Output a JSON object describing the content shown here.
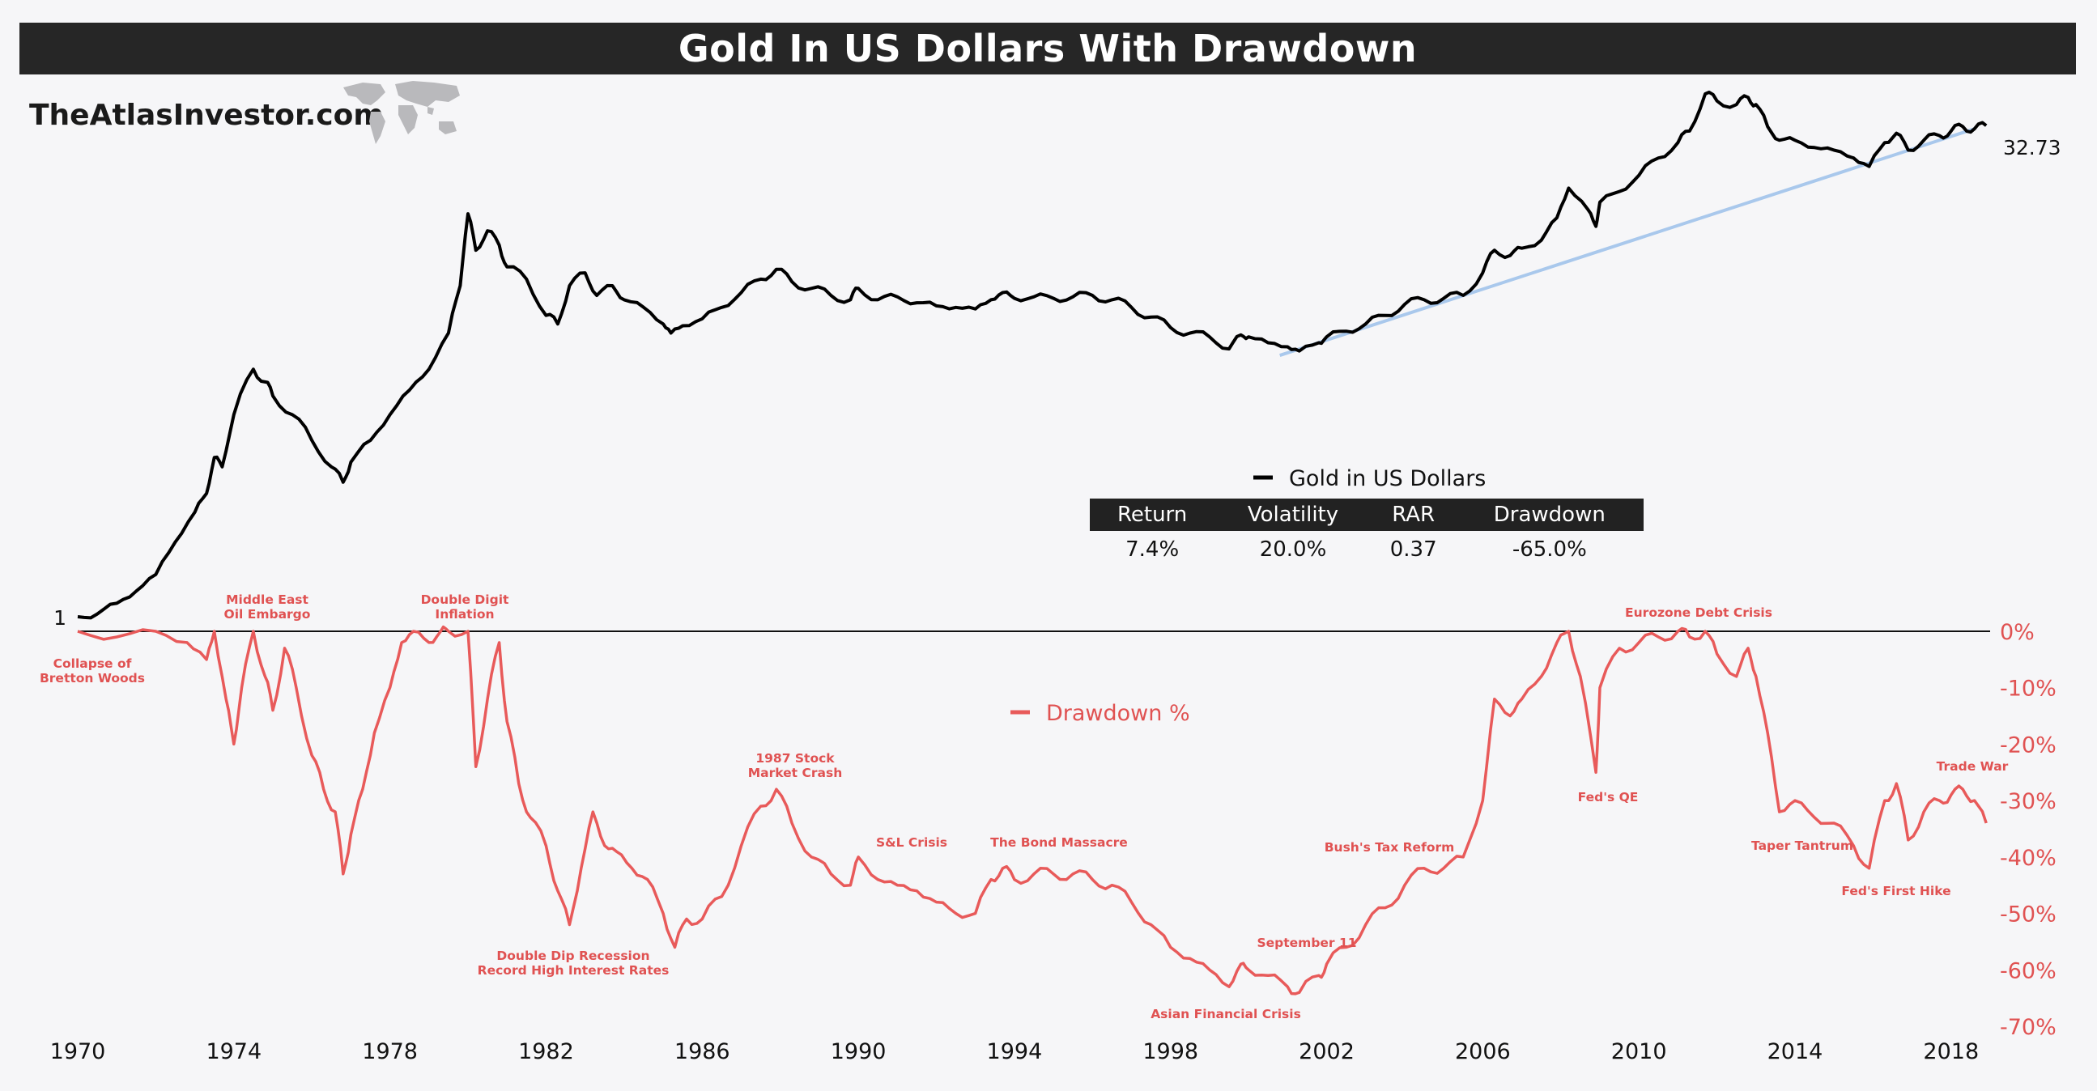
{
  "title": "Gold In US Dollars With Drawdown",
  "brand": "TheAtlasInvestor.com",
  "legend": {
    "gold": "Gold in US Dollars",
    "drawdown": "Drawdown %"
  },
  "stats": {
    "headers": [
      "Return",
      "Volatility",
      "RAR",
      "Drawdown"
    ],
    "values": [
      "7.4%",
      "20.0%",
      "0.37",
      "-65.0%"
    ]
  },
  "colors": {
    "gold": "#000000",
    "drawdown": "#e85a5a",
    "trend": "#a9c8ec",
    "header": "#262626"
  },
  "chart_data": {
    "type": "line",
    "title": "Gold In US Dollars With Drawdown",
    "x_ticks": [
      "1970",
      "1974",
      "1978",
      "1982",
      "1986",
      "1990",
      "1994",
      "1998",
      "2002",
      "2006",
      "2010",
      "2014",
      "2018"
    ],
    "gold": {
      "name": "Gold in US Dollars",
      "scale": "log",
      "start_label": "1",
      "end_label": "32.73",
      "points": [
        [
          1970.0,
          1.0
        ],
        [
          1970.5,
          1.02
        ],
        [
          1971.0,
          1.1
        ],
        [
          1971.5,
          1.2
        ],
        [
          1972.0,
          1.35
        ],
        [
          1972.5,
          1.7
        ],
        [
          1973.0,
          2.1
        ],
        [
          1973.3,
          2.4
        ],
        [
          1973.5,
          3.1
        ],
        [
          1973.7,
          2.9
        ],
        [
          1974.0,
          4.2
        ],
        [
          1974.5,
          5.8
        ],
        [
          1974.8,
          5.3
        ],
        [
          1975.0,
          4.8
        ],
        [
          1975.5,
          4.2
        ],
        [
          1976.0,
          3.5
        ],
        [
          1976.5,
          2.9
        ],
        [
          1976.8,
          2.6
        ],
        [
          1977.0,
          3.0
        ],
        [
          1977.5,
          3.5
        ],
        [
          1978.0,
          4.2
        ],
        [
          1978.5,
          5.0
        ],
        [
          1979.0,
          5.8
        ],
        [
          1979.5,
          7.5
        ],
        [
          1979.8,
          10.5
        ],
        [
          1980.0,
          17.5
        ],
        [
          1980.2,
          13.5
        ],
        [
          1980.5,
          15.5
        ],
        [
          1980.8,
          14.0
        ],
        [
          1981.0,
          12.0
        ],
        [
          1981.5,
          11.0
        ],
        [
          1982.0,
          8.5
        ],
        [
          1982.3,
          8.0
        ],
        [
          1982.6,
          10.5
        ],
        [
          1983.0,
          11.5
        ],
        [
          1983.3,
          9.8
        ],
        [
          1983.7,
          10.5
        ],
        [
          1984.0,
          9.5
        ],
        [
          1984.5,
          9.0
        ],
        [
          1985.0,
          8.0
        ],
        [
          1985.2,
          7.5
        ],
        [
          1985.5,
          7.9
        ],
        [
          1986.0,
          8.3
        ],
        [
          1986.5,
          9.0
        ],
        [
          1987.0,
          10.0
        ],
        [
          1987.5,
          11.0
        ],
        [
          1987.9,
          11.8
        ],
        [
          1988.3,
          10.8
        ],
        [
          1988.8,
          10.3
        ],
        [
          1989.3,
          9.8
        ],
        [
          1989.8,
          9.5
        ],
        [
          1990.0,
          10.3
        ],
        [
          1990.5,
          9.5
        ],
        [
          1991.0,
          9.7
        ],
        [
          1991.5,
          9.3
        ],
        [
          1992.0,
          9.1
        ],
        [
          1992.5,
          9.0
        ],
        [
          1993.0,
          8.9
        ],
        [
          1993.4,
          9.5
        ],
        [
          1993.7,
          10.0
        ],
        [
          1994.0,
          9.6
        ],
        [
          1994.5,
          9.7
        ],
        [
          1995.0,
          9.6
        ],
        [
          1995.5,
          9.7
        ],
        [
          1996.0,
          9.8
        ],
        [
          1996.5,
          9.5
        ],
        [
          1997.0,
          9.0
        ],
        [
          1997.5,
          8.4
        ],
        [
          1998.0,
          7.8
        ],
        [
          1998.5,
          7.5
        ],
        [
          1999.0,
          7.3
        ],
        [
          1999.5,
          6.7
        ],
        [
          1999.8,
          7.4
        ],
        [
          2000.0,
          7.3
        ],
        [
          2000.5,
          7.0
        ],
        [
          2001.0,
          6.8
        ],
        [
          2001.3,
          6.6
        ],
        [
          2001.8,
          7.0
        ],
        [
          2002.0,
          7.3
        ],
        [
          2002.5,
          7.6
        ],
        [
          2003.0,
          8.0
        ],
        [
          2003.5,
          8.5
        ],
        [
          2004.0,
          9.2
        ],
        [
          2004.5,
          9.5
        ],
        [
          2005.0,
          9.6
        ],
        [
          2005.5,
          9.8
        ],
        [
          2006.0,
          11.5
        ],
        [
          2006.3,
          13.5
        ],
        [
          2006.7,
          13.0
        ],
        [
          2007.0,
          13.7
        ],
        [
          2007.5,
          14.5
        ],
        [
          2007.9,
          17.0
        ],
        [
          2008.2,
          21.0
        ],
        [
          2008.7,
          18.0
        ],
        [
          2008.9,
          16.0
        ],
        [
          2009.0,
          19.0
        ],
        [
          2009.5,
          20.5
        ],
        [
          2010.0,
          23.0
        ],
        [
          2010.5,
          26.0
        ],
        [
          2011.0,
          29.0
        ],
        [
          2011.3,
          31.5
        ],
        [
          2011.7,
          41.0
        ],
        [
          2012.0,
          39.0
        ],
        [
          2012.5,
          38.0
        ],
        [
          2012.8,
          40.0
        ],
        [
          2013.0,
          38.0
        ],
        [
          2013.3,
          32.5
        ],
        [
          2013.6,
          29.5
        ],
        [
          2014.0,
          29.5
        ],
        [
          2014.5,
          28.0
        ],
        [
          2015.0,
          27.5
        ],
        [
          2015.5,
          26.0
        ],
        [
          2015.9,
          24.5
        ],
        [
          2016.3,
          29.0
        ],
        [
          2016.6,
          31.0
        ],
        [
          2016.9,
          27.5
        ],
        [
          2017.3,
          29.5
        ],
        [
          2017.7,
          30.5
        ],
        [
          2018.0,
          31.5
        ],
        [
          2018.3,
          32.5
        ],
        [
          2018.6,
          32.0
        ],
        [
          2018.9,
          32.73
        ]
      ]
    },
    "drawdown": {
      "name": "Drawdown %",
      "ylim": [
        -70,
        0
      ],
      "y_ticks": [
        "0%",
        "-10%",
        "-20%",
        "-30%",
        "-40%",
        "-50%",
        "-60%",
        "-70%"
      ],
      "y_tick_values": [
        0,
        -10,
        -20,
        -30,
        -40,
        -50,
        -60,
        -70
      ],
      "points": [
        [
          1970.0,
          0
        ],
        [
          1971.0,
          -1
        ],
        [
          1972.0,
          0
        ],
        [
          1972.8,
          -2
        ],
        [
          1973.3,
          -5
        ],
        [
          1973.5,
          0
        ],
        [
          1973.8,
          -12
        ],
        [
          1974.0,
          -20
        ],
        [
          1974.2,
          -10
        ],
        [
          1974.5,
          0
        ],
        [
          1974.8,
          -8
        ],
        [
          1975.0,
          -14
        ],
        [
          1975.3,
          -3
        ],
        [
          1975.6,
          -10
        ],
        [
          1976.0,
          -22
        ],
        [
          1976.3,
          -28
        ],
        [
          1976.6,
          -32
        ],
        [
          1976.8,
          -43
        ],
        [
          1977.0,
          -36
        ],
        [
          1977.3,
          -28
        ],
        [
          1977.6,
          -18
        ],
        [
          1978.0,
          -10
        ],
        [
          1978.3,
          -2
        ],
        [
          1978.6,
          0
        ],
        [
          1979.0,
          -2
        ],
        [
          1979.3,
          0
        ],
        [
          1979.5,
          0
        ],
        [
          1980.0,
          0
        ],
        [
          1980.2,
          -24
        ],
        [
          1980.5,
          -12
        ],
        [
          1980.8,
          -2
        ],
        [
          1981.0,
          -16
        ],
        [
          1981.3,
          -27
        ],
        [
          1981.6,
          -33
        ],
        [
          1982.0,
          -38
        ],
        [
          1982.3,
          -46
        ],
        [
          1982.6,
          -52
        ],
        [
          1982.9,
          -42
        ],
        [
          1983.2,
          -32
        ],
        [
          1983.5,
          -38
        ],
        [
          1983.8,
          -39
        ],
        [
          1984.2,
          -42
        ],
        [
          1984.6,
          -44
        ],
        [
          1985.0,
          -50
        ],
        [
          1985.3,
          -56
        ],
        [
          1985.6,
          -51
        ],
        [
          1986.0,
          -51
        ],
        [
          1986.5,
          -47
        ],
        [
          1987.0,
          -38
        ],
        [
          1987.5,
          -31
        ],
        [
          1987.9,
          -28
        ],
        [
          1988.3,
          -34
        ],
        [
          1988.8,
          -40
        ],
        [
          1989.3,
          -43
        ],
        [
          1989.8,
          -45
        ],
        [
          1990.0,
          -40
        ],
        [
          1990.5,
          -44
        ],
        [
          1991.0,
          -45
        ],
        [
          1991.5,
          -46
        ],
        [
          1992.0,
          -48
        ],
        [
          1992.5,
          -50
        ],
        [
          1993.0,
          -50
        ],
        [
          1993.4,
          -44
        ],
        [
          1993.7,
          -42
        ],
        [
          1994.0,
          -44
        ],
        [
          1994.5,
          -43
        ],
        [
          1995.0,
          -43
        ],
        [
          1995.5,
          -43
        ],
        [
          1996.0,
          -44
        ],
        [
          1996.5,
          -45
        ],
        [
          1997.0,
          -48
        ],
        [
          1997.5,
          -52
        ],
        [
          1998.0,
          -56
        ],
        [
          1998.5,
          -58
        ],
        [
          1999.0,
          -60
        ],
        [
          1999.5,
          -63
        ],
        [
          1999.8,
          -59
        ],
        [
          2000.0,
          -60
        ],
        [
          2000.5,
          -61
        ],
        [
          2001.0,
          -63
        ],
        [
          2001.3,
          -64
        ],
        [
          2001.8,
          -61
        ],
        [
          2002.0,
          -59
        ],
        [
          2002.5,
          -56
        ],
        [
          2003.0,
          -52
        ],
        [
          2003.5,
          -49
        ],
        [
          2004.0,
          -45
        ],
        [
          2004.5,
          -42
        ],
        [
          2005.0,
          -42
        ],
        [
          2005.5,
          -40
        ],
        [
          2006.0,
          -30
        ],
        [
          2006.3,
          -12
        ],
        [
          2006.7,
          -15
        ],
        [
          2007.0,
          -12
        ],
        [
          2007.5,
          -8
        ],
        [
          2007.9,
          -2
        ],
        [
          2008.2,
          0
        ],
        [
          2008.5,
          -8
        ],
        [
          2008.9,
          -25
        ],
        [
          2009.0,
          -10
        ],
        [
          2009.5,
          -3
        ],
        [
          2010.0,
          -2
        ],
        [
          2010.5,
          -1
        ],
        [
          2011.0,
          0
        ],
        [
          2011.3,
          -1
        ],
        [
          2011.7,
          0
        ],
        [
          2012.0,
          -4
        ],
        [
          2012.5,
          -8
        ],
        [
          2012.8,
          -3
        ],
        [
          2013.0,
          -8
        ],
        [
          2013.3,
          -18
        ],
        [
          2013.6,
          -32
        ],
        [
          2014.0,
          -30
        ],
        [
          2014.5,
          -33
        ],
        [
          2015.0,
          -34
        ],
        [
          2015.5,
          -38
        ],
        [
          2015.9,
          -42
        ],
        [
          2016.3,
          -30
        ],
        [
          2016.6,
          -27
        ],
        [
          2016.9,
          -37
        ],
        [
          2017.3,
          -32
        ],
        [
          2017.7,
          -30
        ],
        [
          2018.0,
          -29
        ],
        [
          2018.3,
          -28
        ],
        [
          2018.6,
          -30
        ],
        [
          2018.9,
          -34
        ]
      ]
    },
    "events": [
      "Collapse of Bretton Woods",
      "Middle East Oil Embargo",
      "Double Digit Inflation",
      "Double Dip Recession Record High Interest Rates",
      "1987 Stock Market Crash",
      "S&L Crisis",
      "The Bond Massacre",
      "Asian Financial Crisis",
      "September 11",
      "Bush's Tax Reform",
      "Eurozone Debt Crisis",
      "Fed's QE",
      "Taper Tantrum",
      "Fed's First Hike",
      "Trade War"
    ]
  }
}
